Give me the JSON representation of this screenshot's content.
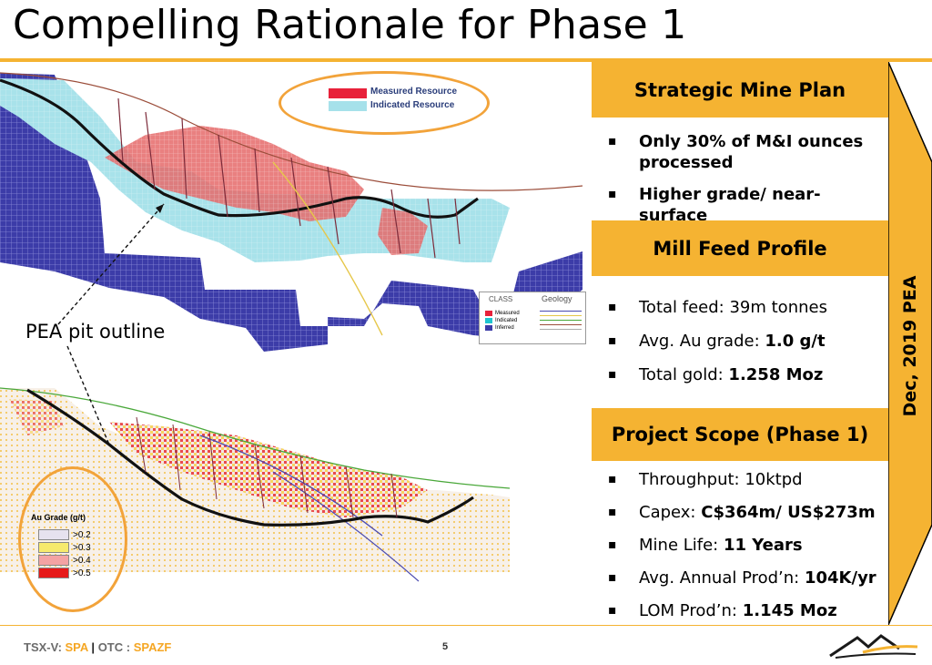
{
  "title": "Compelling Rationale for Phase 1",
  "figure": {
    "pea_label": "PEA pit outline",
    "legend_top": [
      {
        "label": "Measured Resource",
        "color": "#e8213a"
      },
      {
        "label": "Indicated Resource",
        "color": "#a6e1ea"
      }
    ],
    "class_box": {
      "title": "CLASS",
      "geology_title": "Geology",
      "items": [
        "Measured",
        "Indicated",
        "Inferred"
      ]
    },
    "grade_legend": {
      "title": "Au Grade (g/t)",
      "items": [
        {
          "label": ">0.2",
          "color": "#e6e2ef"
        },
        {
          "label": ">0.3",
          "color": "#f6ea6c"
        },
        {
          "label": ">0.4",
          "color": "#f4a3a3"
        },
        {
          "label": ">0.5",
          "color": "#e61919"
        }
      ]
    }
  },
  "sections": {
    "strategic": {
      "header": "Strategic Mine Plan",
      "bullets": [
        "Only 30% of M&I ounces processed",
        "Higher grade/ near-surface"
      ]
    },
    "mill": {
      "header": "Mill Feed Profile",
      "bullets": [
        {
          "text": "Total feed: 39m tonnes",
          "bold": ""
        },
        {
          "text": "Avg. Au grade: ",
          "bold": "1.0 g/t"
        },
        {
          "text": "Total gold: ",
          "bold": "1.258 Moz"
        }
      ]
    },
    "scope": {
      "header": "Project Scope (Phase 1)",
      "bullets": [
        {
          "text": "Throughput: 10ktpd",
          "bold": ""
        },
        {
          "text": "Capex:  ",
          "bold": "C$364m/ US$273m"
        },
        {
          "text": "Mine Life: ",
          "bold": "11 Years"
        },
        {
          "text": "Avg. Annual Prod’n: ",
          "bold": "104K/yr"
        },
        {
          "text": "LOM Prod’n: ",
          "bold": "1.145 Moz"
        }
      ]
    }
  },
  "side_arrow": {
    "label": "Dec, 2019  PEA"
  },
  "footer": {
    "exchange1": "TSX-V: ",
    "ticker1": "SPA",
    "sep": " | ",
    "exchange2": "OTC : ",
    "ticker2": "SPAZF",
    "page": "5"
  },
  "colors": {
    "accent": "#f5b332"
  }
}
